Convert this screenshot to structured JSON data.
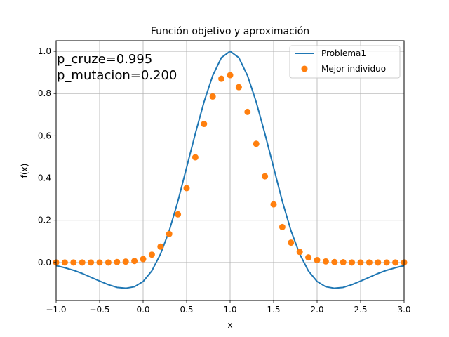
{
  "chart_data": {
    "type": "line",
    "title": "Función objetivo y aproximación",
    "xlabel": "x",
    "ylabel": "f(x)",
    "xlim": [
      -1.0,
      3.0
    ],
    "ylim": [
      -0.18,
      1.05
    ],
    "grid": true,
    "legend_position": "top-right",
    "x_ticks": [
      -1.0,
      -0.5,
      0.0,
      0.5,
      1.0,
      1.5,
      2.0,
      2.5,
      3.0
    ],
    "x_tick_labels": [
      "−1.0",
      "−0.5",
      "0.0",
      "0.5",
      "1.0",
      "1.5",
      "2.0",
      "2.5",
      "3.0"
    ],
    "y_ticks": [
      0.0,
      0.2,
      0.4,
      0.6,
      0.8,
      1.0
    ],
    "y_tick_labels": [
      "0.0",
      "0.2",
      "0.4",
      "0.6",
      "0.8",
      "1.0"
    ],
    "annotations": [
      "p_cruze=0.995",
      "p_mutacion=0.200"
    ],
    "series": [
      {
        "name": "Problema1",
        "kind": "line",
        "color": "#1f77b4",
        "x": [
          -1.0,
          -0.9,
          -0.8,
          -0.7,
          -0.6,
          -0.5,
          -0.4,
          -0.3,
          -0.2,
          -0.1,
          0.0,
          0.1,
          0.2,
          0.3,
          0.4,
          0.5,
          0.6,
          0.7,
          0.8,
          0.9,
          1.0,
          1.1,
          1.2,
          1.3,
          1.4,
          1.5,
          1.6,
          1.7,
          1.8,
          1.9,
          2.0,
          2.1,
          2.2,
          2.3,
          2.4,
          2.5,
          2.6,
          2.7,
          2.8,
          2.9,
          3.0
        ],
        "y": [
          -0.015,
          -0.025,
          -0.037,
          -0.052,
          -0.07,
          -0.088,
          -0.105,
          -0.118,
          -0.122,
          -0.115,
          -0.09,
          -0.04,
          0.04,
          0.15,
          0.29,
          0.45,
          0.61,
          0.76,
          0.885,
          0.97,
          1.0,
          0.97,
          0.885,
          0.76,
          0.61,
          0.45,
          0.29,
          0.15,
          0.04,
          -0.04,
          -0.09,
          -0.115,
          -0.122,
          -0.118,
          -0.105,
          -0.088,
          -0.07,
          -0.052,
          -0.037,
          -0.025,
          -0.015
        ]
      },
      {
        "name": "Mejor individuo",
        "kind": "scatter",
        "color": "#ff7f0e",
        "x": [
          -1.0,
          -0.9,
          -0.8,
          -0.7,
          -0.6,
          -0.5,
          -0.4,
          -0.3,
          -0.2,
          -0.1,
          0.0,
          0.1,
          0.2,
          0.3,
          0.4,
          0.5,
          0.6,
          0.7,
          0.8,
          0.9,
          1.0,
          1.1,
          1.2,
          1.3,
          1.4,
          1.5,
          1.6,
          1.7,
          1.8,
          1.9,
          2.0,
          2.1,
          2.2,
          2.3,
          2.4,
          2.5,
          2.6,
          2.7,
          2.8,
          2.9,
          3.0
        ],
        "y": [
          0.0,
          0.0,
          0.0,
          0.0,
          0.0,
          0.0,
          0.0,
          0.002,
          0.004,
          0.007,
          0.016,
          0.037,
          0.075,
          0.135,
          0.228,
          0.352,
          0.498,
          0.656,
          0.786,
          0.87,
          0.887,
          0.83,
          0.713,
          0.562,
          0.408,
          0.275,
          0.168,
          0.094,
          0.05,
          0.024,
          0.011,
          0.005,
          0.002,
          0.001,
          0.0,
          0.0,
          0.0,
          0.0,
          0.0,
          0.0,
          0.0
        ]
      }
    ]
  }
}
